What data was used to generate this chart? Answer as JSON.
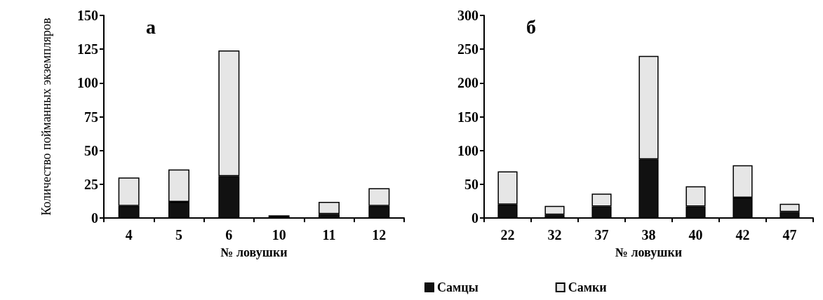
{
  "chart_data": [
    {
      "type": "bar",
      "stacked": true,
      "ylabel": "Количество пойманных экземпляров",
      "xlabel": "№ ловушки",
      "annotations": [
        "а"
      ],
      "categories": [
        "4",
        "5",
        "6",
        "10",
        "11",
        "12"
      ],
      "ylim": [
        0,
        150
      ],
      "yticks": [
        0,
        25,
        50,
        75,
        100,
        125,
        150
      ],
      "series": [
        {
          "color": "#111111",
          "values": [
            9,
            12,
            31,
            2,
            3,
            9
          ]
        },
        {
          "color": "#e6e6e6",
          "values": [
            21,
            24,
            93,
            0,
            9,
            13
          ]
        }
      ]
    },
    {
      "type": "bar",
      "stacked": true,
      "xlabel": "№ ловушки",
      "annotations": [
        "б"
      ],
      "categories": [
        "22",
        "32",
        "37",
        "38",
        "40",
        "42",
        "47"
      ],
      "ylim": [
        0,
        300
      ],
      "yticks": [
        0,
        50,
        100,
        150,
        200,
        250,
        300
      ],
      "legend": "bottom left",
      "series": [
        {
          "name": "Самцы",
          "color": "#111111",
          "values": [
            20,
            5,
            17,
            87,
            17,
            30,
            9
          ]
        },
        {
          "name": "Самки",
          "color": "#e6e6e6",
          "values": [
            49,
            13,
            19,
            153,
            30,
            48,
            12
          ]
        }
      ]
    }
  ]
}
